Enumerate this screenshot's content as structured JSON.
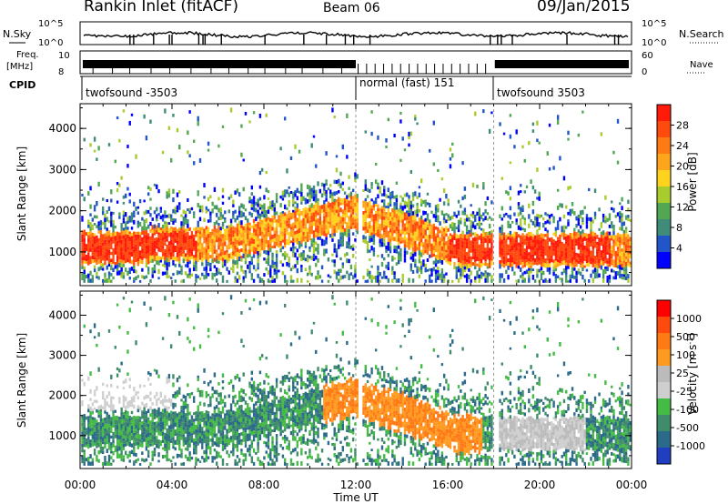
{
  "header": {
    "station": "Rankin Inlet (fitACF)",
    "beam": "Beam 06",
    "date": "09/Jan/2015"
  },
  "top_panels": {
    "nsky_label": "N.Sky",
    "nsearch_label": "N.Search",
    "noise_ticks": [
      "10^5",
      "10^0"
    ],
    "freq_label": "Freq.",
    "freq_unit": "[MHz]",
    "freq_ticks": [
      "10",
      "8"
    ],
    "nave_label": "Nave",
    "nave_ticks": [
      "60",
      "0"
    ],
    "cpid_label": "CPID",
    "cpid_modes": [
      "twofsound -3503",
      "normal (fast) 151",
      "twofsound 3503"
    ]
  },
  "colors": {
    "power_scale": [
      "#0000ff",
      "#2255c8",
      "#3f8c7a",
      "#52a852",
      "#a8cc2e",
      "#ffd21e",
      "#ffa51c",
      "#ff7a14",
      "#ff4a0e",
      "#ff1a0a"
    ],
    "velocity_scale": [
      "#ff0000",
      "#ff4a0e",
      "#ff7a14",
      "#ff9a20",
      "#bbbbbb",
      "#cfcfcf",
      "#44bb44",
      "#3f8c6a",
      "#2b6a88",
      "#1f3fc0"
    ]
  },
  "chart_data": [
    {
      "type": "heatmap",
      "title": "",
      "xlabel": "",
      "ylabel": "Slant Range [km]",
      "x_ticks": [
        "00:00",
        "04:00",
        "08:00",
        "12:00",
        "16:00",
        "20:00",
        "00:00"
      ],
      "y_ticks": [
        "1000",
        "2000",
        "3000",
        "4000"
      ],
      "xlim": [
        0,
        24
      ],
      "ylim": [
        180,
        4600
      ],
      "colorbar_label": "Power [dB]",
      "colorbar_ticks": [
        "4",
        "8",
        "12",
        "16",
        "20",
        "24",
        "28"
      ],
      "colorbar_range": [
        0,
        30
      ],
      "mode_boundaries_hours": [
        12.0,
        18.0
      ]
    },
    {
      "type": "heatmap",
      "title": "",
      "xlabel": "Time UT",
      "ylabel": "Slant Range [km]",
      "x_ticks": [
        "00:00",
        "04:00",
        "08:00",
        "12:00",
        "16:00",
        "20:00",
        "00:00"
      ],
      "y_ticks": [
        "1000",
        "2000",
        "3000",
        "4000"
      ],
      "xlim": [
        0,
        24
      ],
      "ylim": [
        180,
        4600
      ],
      "colorbar_label": "Velocity [m s-1]",
      "colorbar_ticks": [
        "1000",
        "500",
        "100",
        "25",
        "-25",
        "-100",
        "-500",
        "-1000"
      ],
      "mode_boundaries_hours": [
        12.0,
        18.0
      ]
    }
  ]
}
